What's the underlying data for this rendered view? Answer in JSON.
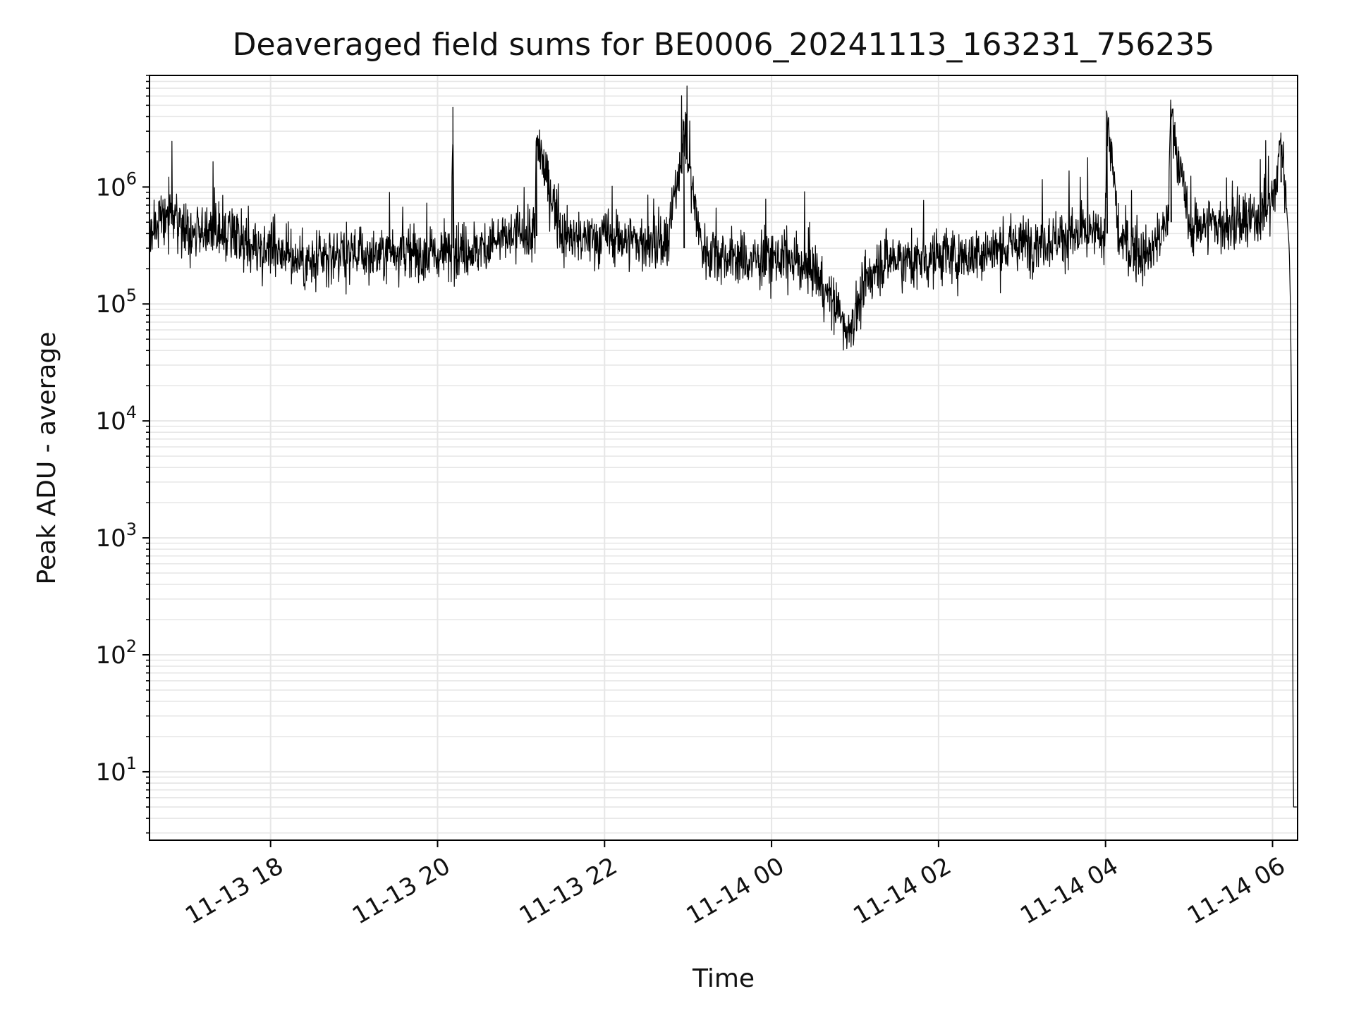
{
  "chart_data": {
    "type": "line",
    "title": "Deaveraged field sums for BE0006_20241113_163231_756235",
    "xlabel": "Time",
    "ylabel": "Peak ADU - average",
    "y_scale": "log",
    "grid": true,
    "line_color": "#000000",
    "grid_color": "#e6e6e6",
    "x_tick_labels": [
      "11-13 18",
      "11-13 20",
      "11-13 22",
      "11-14 00",
      "11-14 02",
      "11-14 04",
      "11-14 06"
    ],
    "y_tick_labels": [
      {
        "base": "10",
        "exp": "1",
        "value": 10
      },
      {
        "base": "10",
        "exp": "2",
        "value": 100
      },
      {
        "base": "10",
        "exp": "3",
        "value": 1000
      },
      {
        "base": "10",
        "exp": "4",
        "value": 10000
      },
      {
        "base": "10",
        "exp": "5",
        "value": 100000
      },
      {
        "base": "10",
        "exp": "6",
        "value": 1000000
      }
    ],
    "x_range": [
      "2024-11-13 16:33",
      "2024-11-14 06:18"
    ],
    "ylim": [
      2.6,
      9000000
    ],
    "series": [
      {
        "x": [
          "2024-11-13 16:33",
          "2024-11-13 16:40",
          "2024-11-13 16:50",
          "2024-11-13 17:00",
          "2024-11-13 17:15",
          "2024-11-13 17:30",
          "2024-11-13 17:45",
          "2024-11-13 18:00",
          "2024-11-13 18:15",
          "2024-11-13 18:30",
          "2024-11-13 18:45",
          "2024-11-13 19:00",
          "2024-11-13 19:15",
          "2024-11-13 19:30",
          "2024-11-13 19:45",
          "2024-11-13 20:00",
          "2024-11-13 20:10",
          "2024-11-13 20:11",
          "2024-11-13 20:12",
          "2024-11-13 20:30",
          "2024-11-13 20:45",
          "2024-11-13 21:00",
          "2024-11-13 21:10",
          "2024-11-13 21:11",
          "2024-11-13 21:30",
          "2024-11-13 21:45",
          "2024-11-13 22:00",
          "2024-11-13 22:15",
          "2024-11-13 22:30",
          "2024-11-13 22:45",
          "2024-11-13 22:57",
          "2024-11-13 23:10",
          "2024-11-13 23:30",
          "2024-11-13 23:45",
          "2024-11-14 00:00",
          "2024-11-14 00:15",
          "2024-11-14 00:30",
          "2024-11-14 00:55",
          "2024-11-14 01:15",
          "2024-11-14 01:30",
          "2024-11-14 01:45",
          "2024-11-14 02:00",
          "2024-11-14 02:15",
          "2024-11-14 02:30",
          "2024-11-14 02:45",
          "2024-11-14 03:00",
          "2024-11-14 03:15",
          "2024-11-14 03:30",
          "2024-11-14 03:45",
          "2024-11-14 04:00",
          "2024-11-14 04:01",
          "2024-11-14 04:10",
          "2024-11-14 04:30",
          "2024-11-14 04:45",
          "2024-11-14 04:47",
          "2024-11-14 05:00",
          "2024-11-14 05:15",
          "2024-11-14 05:30",
          "2024-11-14 05:45",
          "2024-11-14 05:58",
          "2024-11-14 06:03",
          "2024-11-14 06:06",
          "2024-11-14 06:10",
          "2024-11-14 06:12",
          "2024-11-14 06:13",
          "2024-11-14 06:14",
          "2024-11-14 06:15",
          "2024-11-14 06:18"
        ],
        "y": [
          400000,
          500000,
          600000,
          450000,
          400000,
          380000,
          300000,
          320000,
          250000,
          220000,
          260000,
          280000,
          250000,
          300000,
          260000,
          260000,
          300000,
          4800000,
          280000,
          300000,
          350000,
          400000,
          380000,
          2500000,
          380000,
          350000,
          380000,
          360000,
          330000,
          300000,
          2800000,
          300000,
          250000,
          230000,
          250000,
          230000,
          200000,
          60000,
          220000,
          250000,
          230000,
          260000,
          250000,
          270000,
          300000,
          330000,
          350000,
          380000,
          380000,
          400000,
          4300000,
          350000,
          250000,
          500000,
          4600000,
          450000,
          500000,
          450000,
          500000,
          700000,
          1100000,
          2900000,
          700000,
          300000,
          80000,
          3000,
          5,
          5
        ]
      }
    ]
  }
}
